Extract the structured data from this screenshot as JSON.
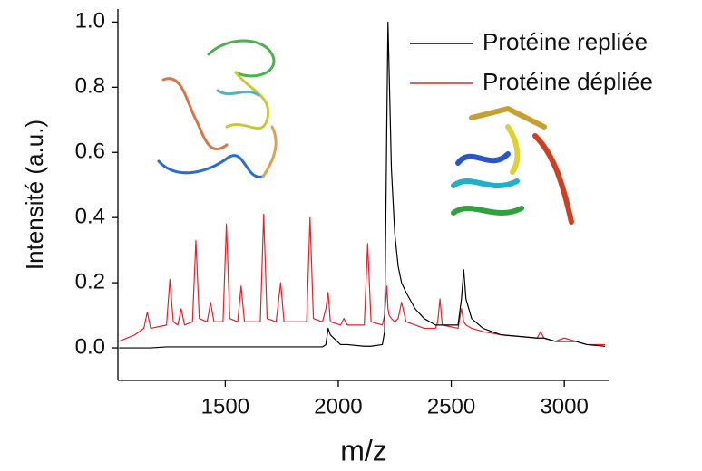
{
  "chart_data": {
    "type": "line",
    "xlabel": "m/z",
    "ylabel": "Intensité (a.u.)",
    "x": [
      1030,
      1100,
      1140,
      1155,
      1170,
      1240,
      1255,
      1270,
      1290,
      1305,
      1320,
      1355,
      1370,
      1385,
      1420,
      1435,
      1450,
      1490,
      1505,
      1520,
      1555,
      1570,
      1585,
      1655,
      1670,
      1685,
      1725,
      1745,
      1760,
      1860,
      1875,
      1890,
      1930,
      1945,
      1955,
      1965,
      2010,
      2025,
      2040,
      2115,
      2130,
      2145,
      2195,
      2205,
      2215,
      2220,
      2225,
      2235,
      2250,
      2265,
      2280,
      2300,
      2340,
      2380,
      2430,
      2440,
      2450,
      2460,
      2530,
      2545,
      2555,
      2565,
      2590,
      2640,
      2720,
      2880,
      2895,
      2910,
      2960,
      3000,
      3050,
      3100,
      3180
    ],
    "series": [
      {
        "name": "Protéine repliée",
        "color": "#000000",
        "values": [
          0,
          0,
          0,
          0,
          0,
          0.003,
          0.003,
          0.003,
          0.003,
          0.003,
          0.003,
          0.003,
          0.003,
          0.003,
          0.003,
          0.003,
          0.003,
          0.003,
          0.003,
          0.003,
          0.003,
          0.003,
          0.003,
          0.003,
          0.003,
          0.003,
          0.003,
          0.003,
          0.003,
          0.003,
          0.003,
          0.003,
          0.003,
          0.01,
          0.06,
          0.04,
          0.01,
          0.01,
          0.01,
          0.005,
          0.005,
          0.005,
          0.01,
          0.05,
          0.7,
          1.0,
          0.85,
          0.55,
          0.35,
          0.25,
          0.2,
          0.17,
          0.12,
          0.09,
          0.07,
          0.07,
          0.07,
          0.07,
          0.07,
          0.15,
          0.24,
          0.15,
          0.09,
          0.06,
          0.04,
          0.03,
          0.03,
          0.03,
          0.02,
          0.02,
          0.02,
          0.01,
          0.005
        ]
      },
      {
        "name": "Protéine dépliée",
        "color": "#e8202a",
        "values": [
          0.02,
          0.04,
          0.06,
          0.11,
          0.06,
          0.07,
          0.21,
          0.08,
          0.07,
          0.12,
          0.07,
          0.08,
          0.33,
          0.09,
          0.08,
          0.14,
          0.08,
          0.08,
          0.38,
          0.09,
          0.08,
          0.19,
          0.08,
          0.08,
          0.41,
          0.09,
          0.08,
          0.2,
          0.08,
          0.08,
          0.4,
          0.09,
          0.08,
          0.12,
          0.17,
          0.08,
          0.07,
          0.09,
          0.07,
          0.07,
          0.32,
          0.08,
          0.07,
          0.1,
          0.19,
          0.12,
          0.1,
          0.09,
          0.08,
          0.09,
          0.14,
          0.08,
          0.07,
          0.06,
          0.06,
          0.08,
          0.15,
          0.07,
          0.06,
          0.12,
          0.08,
          0.07,
          0.06,
          0.05,
          0.04,
          0.03,
          0.05,
          0.03,
          0.02,
          0.03,
          0.02,
          0.01,
          0.01
        ]
      }
    ],
    "xlim": [
      1025,
      3200
    ],
    "ylim": [
      -0.1,
      1.04
    ],
    "xticks": [
      1500,
      2000,
      2500,
      3000
    ],
    "yticks": [
      {
        "value": 0,
        "label": "0.0"
      },
      0.2,
      0.4,
      0.6,
      0.8,
      {
        "value": 1,
        "label": "1.0"
      }
    ],
    "legend": "top-right",
    "grid": false
  }
}
